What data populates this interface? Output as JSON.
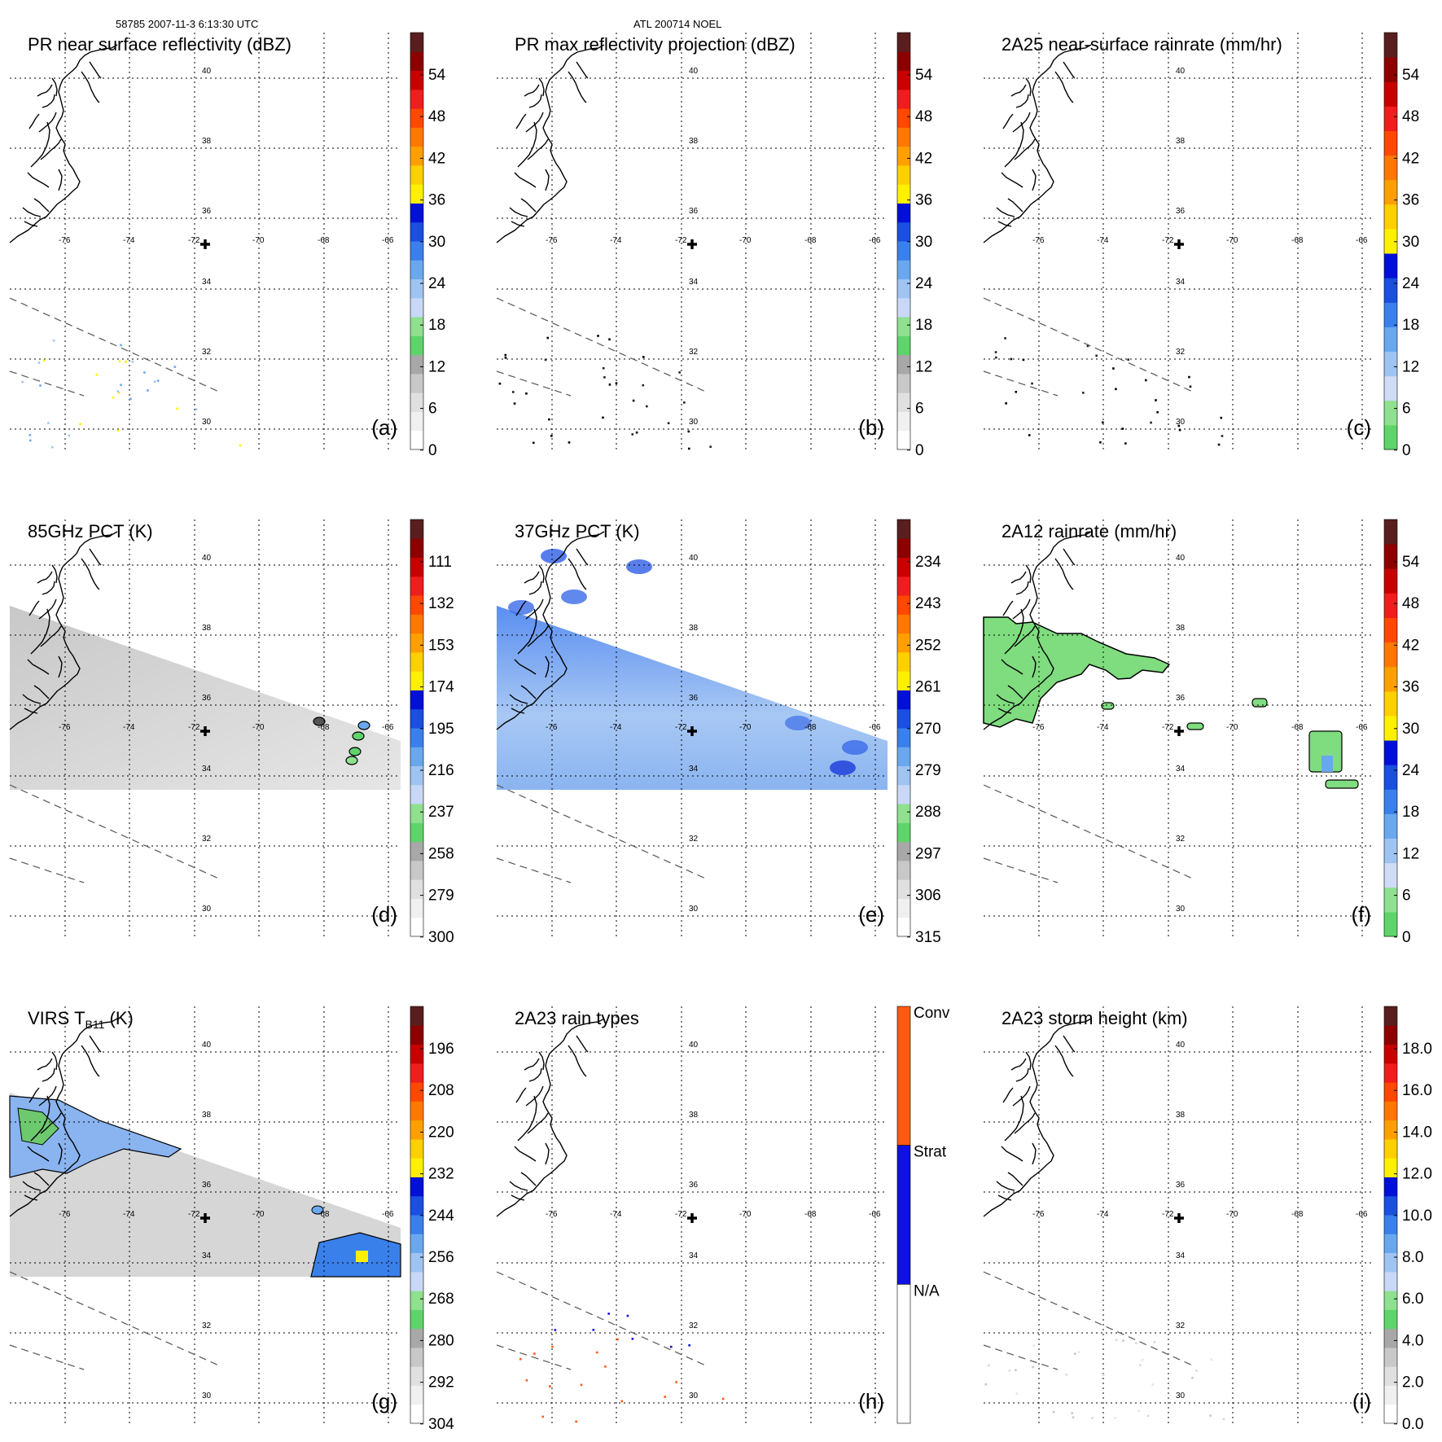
{
  "header": {
    "orbit_info": "58785 2007-11-3 6:13:30 UTC",
    "storm_info": "ATL 200714 NOEL"
  },
  "map_grid": {
    "lon_labels": [
      "-76",
      "-74",
      "-72",
      "-70",
      "-68",
      "-66"
    ],
    "lat_labels": [
      "40",
      "38",
      "36",
      "34",
      "32",
      "30"
    ]
  },
  "colors": {
    "accent_storm_center": "#000000",
    "dashed_swath": "#555555"
  },
  "chart_data": [
    {
      "type": "heatmap",
      "id": "a",
      "title": "PR near surface reflectivity (dBZ)",
      "panel_label": "(a)",
      "colorbar_ticks": [
        "54",
        "48",
        "42",
        "36",
        "30",
        "24",
        "18",
        "12",
        "6",
        "0"
      ],
      "colorbar_colors": [
        "#ffffff",
        "#f0f0f0",
        "#e0e0e0",
        "#c8c8c8",
        "#a8a8a8",
        "#5fd46b",
        "#8fe08f",
        "#c8d8f6",
        "#a0c4f2",
        "#6aa8ee",
        "#3a80ea",
        "#1a4fe0",
        "#0010d6",
        "#fff000",
        "#ffd000",
        "#ffa000",
        "#ff7800",
        "#ff4800",
        "#ee1e1e",
        "#c80000",
        "#8c0000",
        "#5a1e1e"
      ],
      "coverage": "sparse PR swath echoes"
    },
    {
      "type": "heatmap",
      "id": "b",
      "title": "PR max reflectivity projection (dBZ)",
      "panel_label": "(b)",
      "colorbar_ticks": [
        "54",
        "48",
        "42",
        "36",
        "30",
        "24",
        "18",
        "12",
        "6",
        "0"
      ],
      "colorbar_colors": [
        "#ffffff",
        "#f0f0f0",
        "#e0e0e0",
        "#c8c8c8",
        "#a8a8a8",
        "#5fd46b",
        "#8fe08f",
        "#c8d8f6",
        "#a0c4f2",
        "#6aa8ee",
        "#3a80ea",
        "#1a4fe0",
        "#0010d6",
        "#fff000",
        "#ffd000",
        "#ffa000",
        "#ff7800",
        "#ff4800",
        "#ee1e1e",
        "#c80000",
        "#8c0000",
        "#5a1e1e"
      ],
      "coverage": "sparse PR swath echoes"
    },
    {
      "type": "heatmap",
      "id": "c",
      "title": "2A25 near-surface rainrate (mm/hr)",
      "panel_label": "(c)",
      "colorbar_ticks": [
        "54",
        "48",
        "42",
        "36",
        "30",
        "24",
        "18",
        "12",
        "6",
        "0"
      ],
      "colorbar_colors": [
        "#5fd46b",
        "#8fe08f",
        "#d0dcf6",
        "#a0c4f2",
        "#6aa8ee",
        "#3a80ea",
        "#1a4fe0",
        "#0010d6",
        "#fff000",
        "#ffd000",
        "#ffa000",
        "#ff7800",
        "#ff4800",
        "#ee1e1e",
        "#c80000",
        "#8c0000",
        "#5a1e1e"
      ],
      "coverage": "sparse PR swath echoes"
    },
    {
      "type": "heatmap",
      "id": "d",
      "title": "85GHz PCT (K)",
      "panel_label": "(d)",
      "colorbar_ticks": [
        "111",
        "132",
        "153",
        "174",
        "195",
        "216",
        "237",
        "258",
        "279",
        "300"
      ],
      "colorbar_colors": [
        "#ffffff",
        "#f0f0f0",
        "#e0e0e0",
        "#c8c8c8",
        "#a8a8a8",
        "#5fd46b",
        "#8fe08f",
        "#c8d8f6",
        "#a0c4f2",
        "#6aa8ee",
        "#3a80ea",
        "#1a4fe0",
        "#0010d6",
        "#fff000",
        "#ffd000",
        "#ffa000",
        "#ff7800",
        "#ff4800",
        "#ee1e1e",
        "#c80000",
        "#8c0000",
        "#5a1e1e"
      ],
      "coverage": "TMI swath mostly grey, isolated green/blue cells near -66"
    },
    {
      "type": "heatmap",
      "id": "e",
      "title": "37GHz PCT (K)",
      "panel_label": "(e)",
      "colorbar_ticks": [
        "234",
        "243",
        "252",
        "261",
        "270",
        "279",
        "288",
        "297",
        "306",
        "315"
      ],
      "colorbar_colors": [
        "#ffffff",
        "#f0f0f0",
        "#e0e0e0",
        "#c8c8c8",
        "#a8a8a8",
        "#5fd46b",
        "#8fe08f",
        "#c8d8f6",
        "#a0c4f2",
        "#6aa8ee",
        "#3a80ea",
        "#1a4fe0",
        "#0010d6",
        "#fff000",
        "#ffd000",
        "#ffa000",
        "#ff7800",
        "#ff4800",
        "#ee1e1e",
        "#c80000",
        "#8c0000",
        "#5a1e1e"
      ],
      "coverage": "TMI swath light-to-medium blue"
    },
    {
      "type": "heatmap",
      "id": "f",
      "title": "2A12 rainrate (mm/hr)",
      "panel_label": "(f)",
      "colorbar_ticks": [
        "54",
        "48",
        "42",
        "36",
        "30",
        "24",
        "18",
        "12",
        "6",
        "0"
      ],
      "colorbar_colors": [
        "#5fd46b",
        "#8fe08f",
        "#d0dcf6",
        "#a0c4f2",
        "#6aa8ee",
        "#3a80ea",
        "#1a4fe0",
        "#0010d6",
        "#fff000",
        "#ffd000",
        "#ffa000",
        "#ff7800",
        "#ff4800",
        "#ee1e1e",
        "#c80000",
        "#8c0000",
        "#5a1e1e"
      ],
      "coverage": "light rain (green) in NW of swath, scattered cells elsewhere"
    },
    {
      "type": "heatmap",
      "id": "g",
      "title": "VIRS T",
      "title_sub": "B11",
      "title_unit": " (K)",
      "panel_label": "(g)",
      "colorbar_ticks": [
        "196",
        "208",
        "220",
        "232",
        "244",
        "256",
        "268",
        "280",
        "292",
        "304"
      ],
      "colorbar_colors": [
        "#ffffff",
        "#f0f0f0",
        "#e0e0e0",
        "#c8c8c8",
        "#a8a8a8",
        "#5fd46b",
        "#8fe08f",
        "#c8d8f6",
        "#a0c4f2",
        "#6aa8ee",
        "#3a80ea",
        "#1a4fe0",
        "#0010d6",
        "#fff000",
        "#ffd000",
        "#ffa000",
        "#ff7800",
        "#ff4800",
        "#ee1e1e",
        "#c80000",
        "#8c0000",
        "#5a1e1e"
      ],
      "coverage": "grey clouds, colder cloud tops in NW corner and near -66"
    },
    {
      "type": "heatmap",
      "id": "h",
      "title": "2A23 rain types",
      "panel_label": "(h)",
      "categories": [
        "Conv",
        "Strat",
        "N/A"
      ],
      "category_colors": [
        "#ff5a14",
        "#1010e0",
        "#ffffff"
      ],
      "coverage": "sparse convective/stratiform pixels"
    },
    {
      "type": "heatmap",
      "id": "i",
      "title": "2A23 storm height (km)",
      "panel_label": "(i)",
      "colorbar_ticks": [
        "18.0",
        "16.0",
        "14.0",
        "12.0",
        "10.0",
        "8.0",
        "6.0",
        "4.0",
        "2.0",
        "0.0"
      ],
      "colorbar_colors": [
        "#ffffff",
        "#f0f0f0",
        "#e0e0e0",
        "#c8c8c8",
        "#a8a8a8",
        "#5fd46b",
        "#8fe08f",
        "#c8d8f6",
        "#a0c4f2",
        "#6aa8ee",
        "#3a80ea",
        "#1a4fe0",
        "#0010d6",
        "#fff000",
        "#ffd000",
        "#ffa000",
        "#ff7800",
        "#ff4800",
        "#ee1e1e",
        "#c80000",
        "#8c0000",
        "#5a1e1e"
      ],
      "coverage": "sparse low storm heights"
    }
  ]
}
